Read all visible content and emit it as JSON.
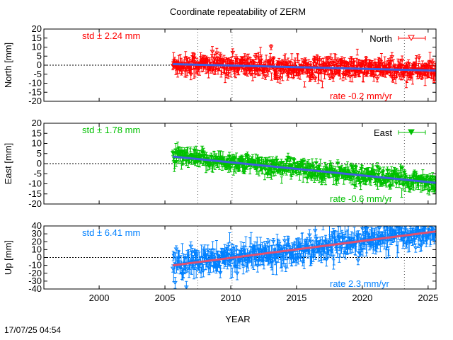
{
  "title": "Coordinate repeatability of ZERM",
  "timestamp": "17/07/25 04:54",
  "chart_data": {
    "type": "scatter",
    "title": "Coordinate repeatability of ZERM",
    "xlabel": "YEAR",
    "xlim": [
      1995.8,
      2025.6
    ],
    "x_ticks": [
      2000,
      2005,
      2010,
      2015,
      2020,
      2025
    ],
    "data_span": [
      2005.6,
      2025.6
    ],
    "vlines": [
      2007.5,
      2010.1,
      2023.2
    ],
    "panels": [
      {
        "name": "North",
        "ylabel": "North [mm]",
        "ylim": [
          -20,
          20
        ],
        "yticks": [
          -20,
          -15,
          -10,
          -5,
          0,
          5,
          10,
          15,
          20
        ],
        "color": "#ff0000",
        "trend_color": "#3f5fdf",
        "std_text": "std ± 2.24 mm",
        "rate_text": "rate -0.2 mm/yr",
        "legend": "North",
        "marker": "open-triangle-down",
        "std": 2.24,
        "rate": -0.2,
        "trend": [
          [
            2005.6,
            0.6
          ],
          [
            2025.6,
            -3.0
          ]
        ]
      },
      {
        "name": "East",
        "ylabel": "East [mm]",
        "ylim": [
          -20,
          20
        ],
        "yticks": [
          -20,
          -15,
          -10,
          -5,
          0,
          5,
          10,
          15,
          20
        ],
        "color": "#00c000",
        "trend_color": "#3f5fdf",
        "std_text": "std ± 1.78 mm",
        "rate_text": "rate -0.6 mm/yr",
        "legend": "East",
        "marker": "filled-triangle-down",
        "std": 1.78,
        "rate": -0.6,
        "trend": [
          [
            2005.6,
            3.5
          ],
          [
            2025.6,
            -9.5
          ]
        ]
      },
      {
        "name": "Up",
        "ylabel": "Up [mm]",
        "ylim": [
          -40,
          40
        ],
        "yticks": [
          -40,
          -30,
          -20,
          -10,
          0,
          10,
          20,
          30,
          40
        ],
        "color": "#0080ff",
        "trend_color": "#e05070",
        "std_text": "std ± 6.41 mm",
        "rate_text": "rate  2.3 mm/yr",
        "legend": "",
        "marker": "open-diamond",
        "std": 6.41,
        "rate": 2.3,
        "trend": [
          [
            2005.6,
            -10
          ],
          [
            2025.6,
            33
          ]
        ]
      }
    ]
  }
}
